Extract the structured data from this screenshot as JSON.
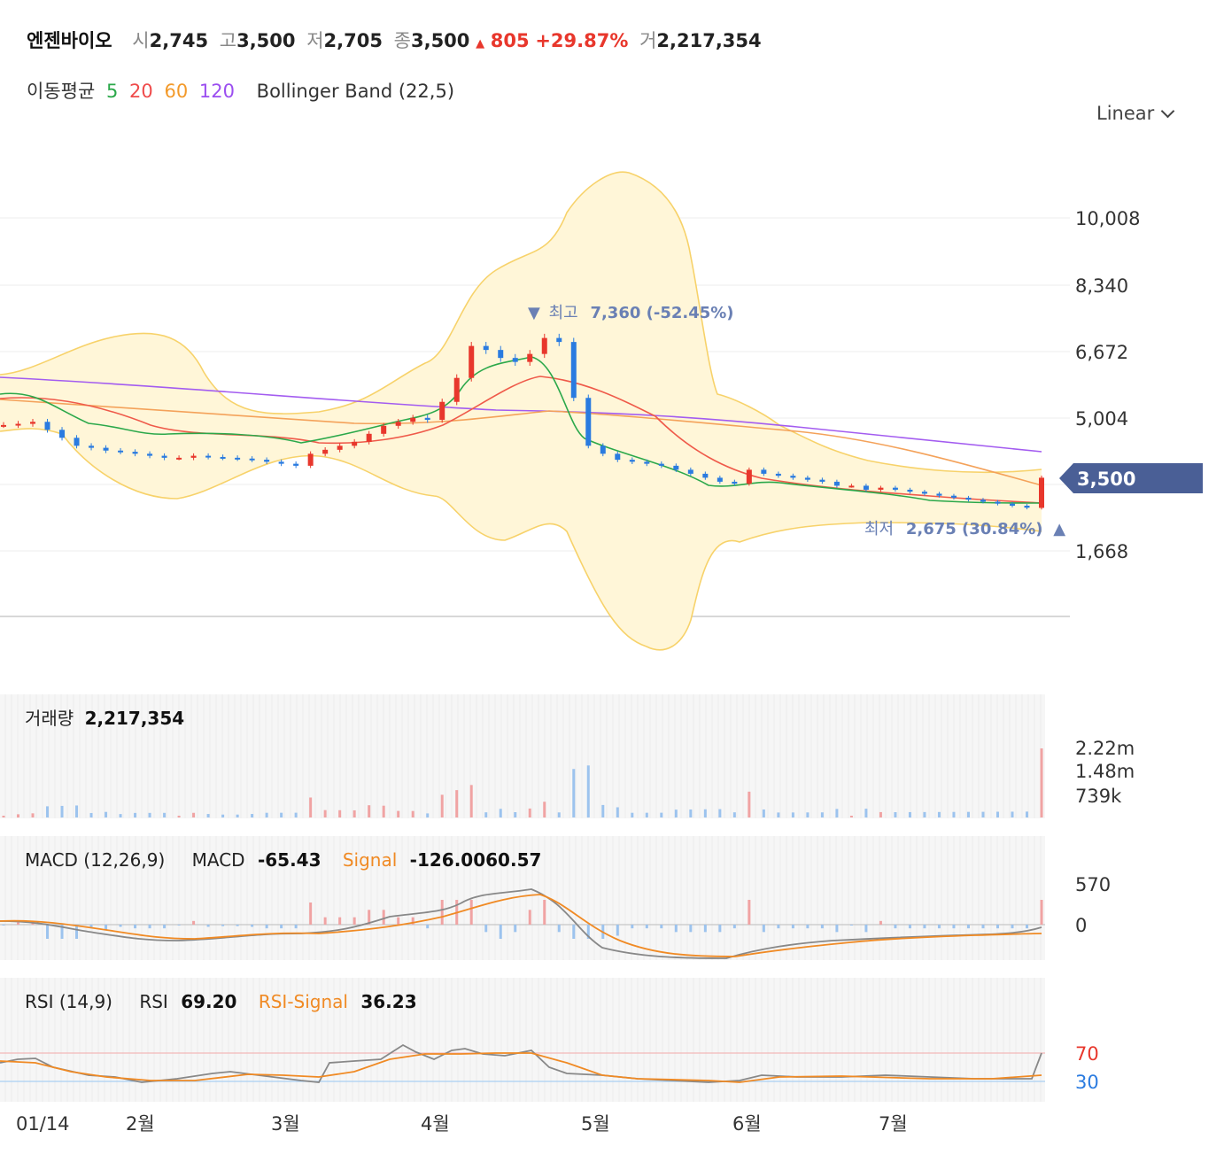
{
  "header": {
    "name": "엔젠바이오",
    "open_label": "시",
    "open": "2,745",
    "high_label": "고",
    "high": "3,500",
    "low_label": "저",
    "low": "2,705",
    "close_label": "종",
    "close": "3,500",
    "change_arrow": "▲",
    "change": "805",
    "change_pct": "+29.87%",
    "volume_label": "거",
    "volume": "2,217,354"
  },
  "indicators": {
    "ma_label": "이동평균",
    "ma_periods": [
      "5",
      "20",
      "60",
      "120"
    ],
    "ma_colors": [
      "#2ba84a",
      "#ef4b4b",
      "#f39a2b",
      "#9b4ef0"
    ],
    "bollinger_label": "Bollinger Band (22,5)"
  },
  "scale_select": "Linear",
  "price_axis": {
    "ticks": [
      "10,008",
      "8,340",
      "6,672",
      "5,004",
      "1,668"
    ],
    "tick_values": [
      10008,
      8340,
      6672,
      5004,
      1668
    ],
    "current_price_tag": "3,500",
    "current_price": 3500
  },
  "annotations": {
    "high": {
      "arrow": "▼",
      "label": "최고",
      "value": "7,360 (-52.45%)"
    },
    "low": {
      "arrow": "▲",
      "label": "최저",
      "value": "2,675 (30.84%)"
    }
  },
  "volume_panel": {
    "title": "거래량",
    "value": "2,217,354",
    "ticks": [
      "2.22m",
      "1.48m",
      "739k"
    ]
  },
  "macd_panel": {
    "title": "MACD (12,26,9)",
    "macd_label": "MACD",
    "macd_value": "-65.43",
    "signal_label": "Signal",
    "signal_value": "-126.0060.57",
    "ticks": [
      "570",
      "0"
    ]
  },
  "rsi_panel": {
    "title": "RSI (14,9)",
    "rsi_label": "RSI",
    "rsi_value": "69.20",
    "signal_label": "RSI-Signal",
    "signal_value": "36.23",
    "ticks": [
      "70",
      "30"
    ]
  },
  "x_axis": [
    "01/14",
    "2월",
    "3월",
    "4월",
    "5월",
    "6월",
    "7월"
  ],
  "colors": {
    "up": "#e8372c",
    "down": "#2a7be0",
    "band_fill": "#fff6d8",
    "band_line": "#f7d26a",
    "ma5": "#2ba84a",
    "ma20": "#ef5a4a",
    "ma60": "#f4a25a",
    "ma120": "#a35cf0",
    "tag": "#4a5f96",
    "signal": "#f08a24"
  },
  "chart_data": {
    "type": "candlestick",
    "x_labels": [
      "01/14",
      "2월",
      "3월",
      "4월",
      "5월",
      "6월",
      "7월"
    ],
    "close_series": [
      4820,
      4850,
      4900,
      4700,
      4500,
      4300,
      4250,
      4180,
      4150,
      4100,
      4050,
      4000,
      4000,
      4050,
      4020,
      4000,
      3980,
      3950,
      3900,
      3850,
      3800,
      4100,
      4200,
      4300,
      4400,
      4600,
      4800,
      4900,
      5000,
      4950,
      5400,
      6000,
      6800,
      6700,
      6500,
      6400,
      6600,
      7000,
      6900,
      5500,
      4300,
      4100,
      3950,
      3900,
      3850,
      3800,
      3700,
      3600,
      3500,
      3400,
      3350,
      3700,
      3600,
      3550,
      3500,
      3450,
      3400,
      3300,
      3300,
      3200,
      3250,
      3200,
      3150,
      3100,
      3050,
      3000,
      2950,
      2900,
      2850,
      2800,
      2750,
      3500
    ],
    "ma5_note": "",
    "volume_unit": "shares"
  }
}
